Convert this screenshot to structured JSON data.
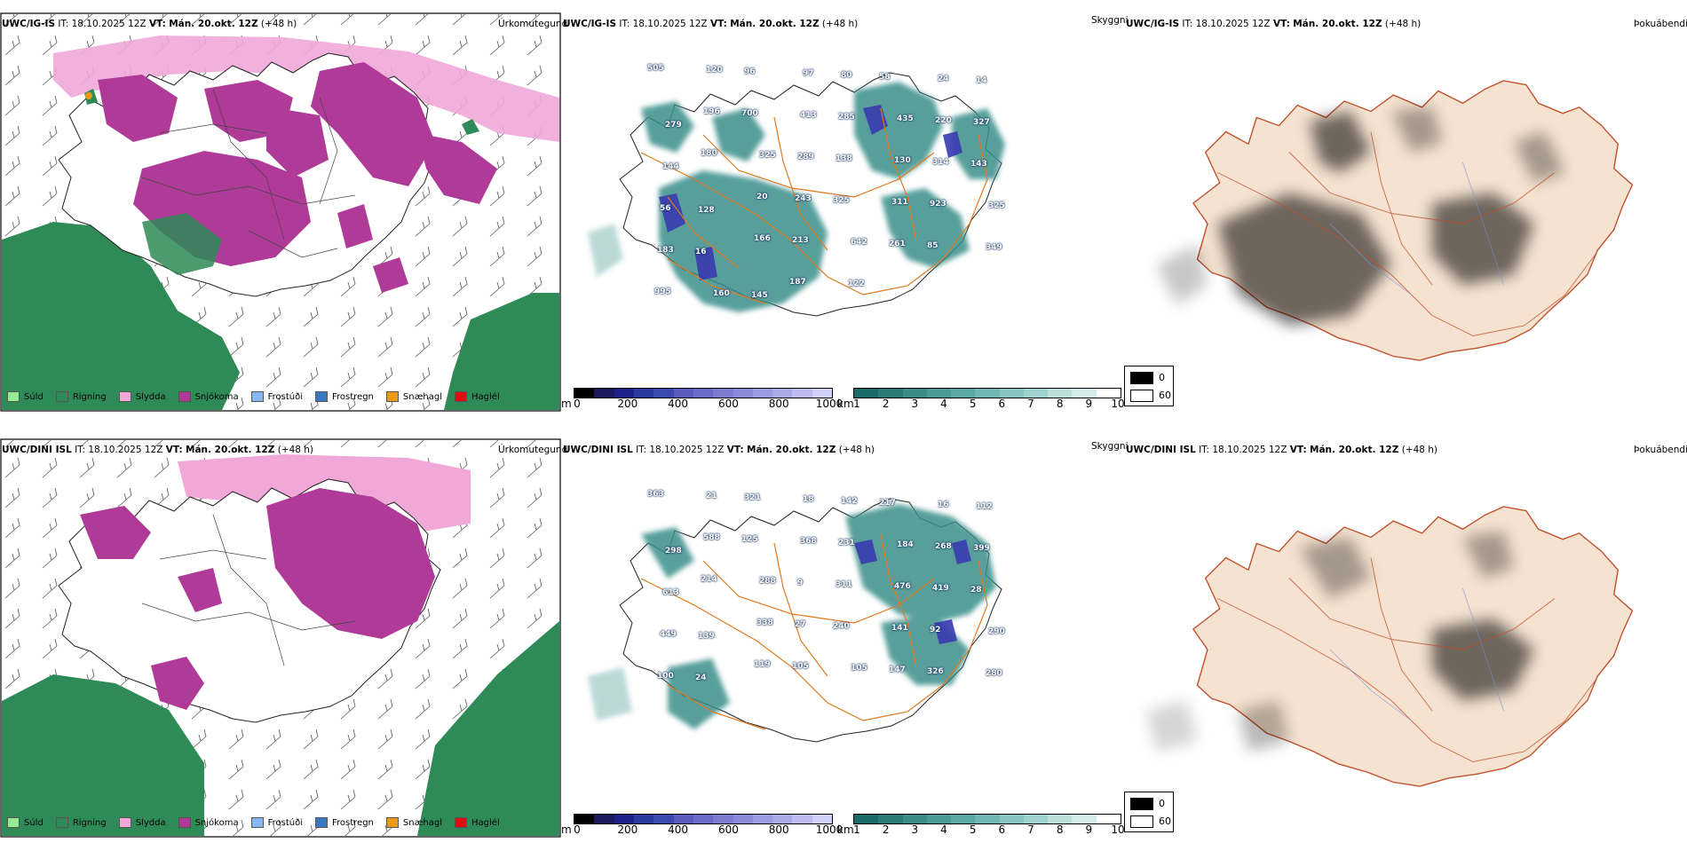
{
  "rows": [
    {
      "model": "UWC/IG-IS",
      "it_label": "IT:",
      "it_value": "18.10.2025 12Z",
      "vt_label": "VT:",
      "vt_value": "Mán. 20.okt. 12Z",
      "lead": "(+48 h)",
      "precip_panel_title": "Úrkomutegund",
      "visibility_panel_title": "Skyggni",
      "fog_panel_title": "Þokuábendi",
      "cloud_base_labels": [
        "505",
        "120",
        "96",
        "97",
        "80",
        "58",
        "24",
        "14",
        "279",
        "196",
        "700",
        "413",
        "285",
        "435",
        "220",
        "327",
        "144",
        "180",
        "325",
        "289",
        "138",
        "130",
        "314",
        "143",
        "56",
        "128",
        "20",
        "243",
        "325",
        "311",
        "923",
        "325",
        "183",
        "16",
        "166",
        "213",
        "642",
        "261",
        "85",
        "349",
        "995",
        "160",
        "145",
        "187",
        "122"
      ]
    },
    {
      "model": "UWC/DINI ISL",
      "it_label": "IT:",
      "it_value": "18.10.2025 12Z",
      "vt_label": "VT:",
      "vt_value": "Mán. 20.okt. 12Z",
      "lead": "(+48 h)",
      "precip_panel_title": "Úrkomutegund",
      "visibility_panel_title": "Skyggni",
      "fog_panel_title": "Þokuábendi",
      "cloud_base_labels": [
        "363",
        "21",
        "321",
        "18",
        "142",
        "217",
        "16",
        "112",
        "298",
        "588",
        "125",
        "368",
        "231",
        "184",
        "268",
        "399",
        "613",
        "214",
        "288",
        "9",
        "311",
        "476",
        "419",
        "28",
        "449",
        "139",
        "338",
        "27",
        "240",
        "141",
        "92",
        "290",
        "100",
        "24",
        "119",
        "105",
        "105",
        "147",
        "326",
        "280"
      ]
    }
  ],
  "precip_legend": [
    {
      "label": "Súld",
      "color": "#90ee90"
    },
    {
      "label": "Rigning",
      "color": "#2e8b57"
    },
    {
      "label": "Slydda",
      "color": "#f0a8d8"
    },
    {
      "label": "Snjókoma",
      "color": "#b03a98"
    },
    {
      "label": "Frostúði",
      "color": "#87b8f0"
    },
    {
      "label": "Frostregn",
      "color": "#3a78c0"
    },
    {
      "label": "Snæhagl",
      "color": "#e89a1a"
    },
    {
      "label": "Haglél",
      "color": "#e01010"
    }
  ],
  "cloud_base_bar": {
    "unit": "m",
    "ticks": [
      "0",
      "200",
      "400",
      "600",
      "800",
      "1000"
    ],
    "colors": [
      "#000000",
      "#1a1a5a",
      "#20208a",
      "#2a3aa0",
      "#3a4ab0",
      "#5a5ac0",
      "#6a6ac8",
      "#7a7ad0",
      "#8a8ad8",
      "#9a9ae0",
      "#aaaae8",
      "#bcbcf0",
      "#d0d0f8"
    ]
  },
  "visibility_bar": {
    "unit": "km",
    "ticks": [
      "1",
      "2",
      "3",
      "4",
      "5",
      "6",
      "7",
      "8",
      "9",
      "10"
    ],
    "colors": [
      "#1a6a6a",
      "#2a7a78",
      "#3a8a88",
      "#4a9a96",
      "#5aa8a4",
      "#70b6b2",
      "#88c4c0",
      "#a0d2ce",
      "#bcdfdc",
      "#d6ecea",
      "#ffffff"
    ]
  },
  "fog_legend": [
    {
      "label": "0",
      "color": "#000000"
    },
    {
      "label": "60",
      "color": "#ffffff"
    }
  ],
  "colors": {
    "rain": "#2e8b57",
    "sleet": "#f0a8d8",
    "snow": "#b03a98",
    "vis_teal": "#3a8f8a",
    "cloud_blue": "#3a3ab0",
    "road_orange": "#e07a20",
    "land_tan": "#f5e2d0",
    "river_blue": "#7a90e0"
  }
}
